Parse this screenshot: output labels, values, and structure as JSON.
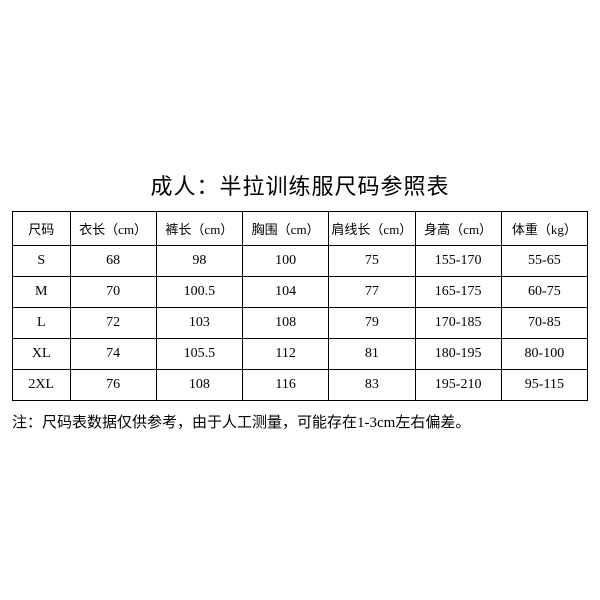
{
  "title": "成人：半拉训练服尺码参照表",
  "table": {
    "columns": [
      "尺码",
      "衣长（cm）",
      "裤长（cm）",
      "胸围（cm）",
      "肩线长（cm）",
      "身高（cm）",
      "体重（kg）"
    ],
    "rows": [
      [
        "S",
        "68",
        "98",
        "100",
        "75",
        "155-170",
        "55-65"
      ],
      [
        "M",
        "70",
        "100.5",
        "104",
        "77",
        "165-175",
        "60-75"
      ],
      [
        "L",
        "72",
        "103",
        "108",
        "79",
        "170-185",
        "70-85"
      ],
      [
        "XL",
        "74",
        "105.5",
        "112",
        "81",
        "180-195",
        "80-100"
      ],
      [
        "2XL",
        "76",
        "108",
        "116",
        "83",
        "195-210",
        "95-115"
      ]
    ],
    "column_widths": [
      "10%",
      "15%",
      "15%",
      "15%",
      "15%",
      "15%",
      "15%"
    ],
    "border_color": "#000000",
    "header_fontsize": 13,
    "cell_fontsize": 14,
    "text_color": "#000000"
  },
  "note": "注：尺码表数据仅供参考，由于人工测量，可能存在1-3cm左右偏差。",
  "background_color": "#ffffff",
  "title_fontsize": 22
}
